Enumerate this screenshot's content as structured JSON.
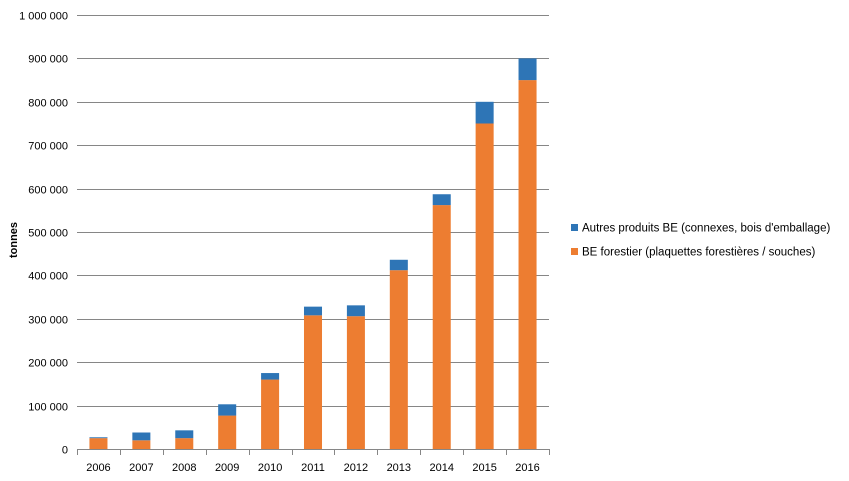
{
  "chart_data": {
    "type": "bar",
    "stacked": true,
    "title": "",
    "xlabel": "",
    "ylabel": "tonnes",
    "ylim": [
      0,
      1000000
    ],
    "ytick_step": 100000,
    "ytick_labels": [
      "0",
      "100 000",
      "200 000",
      "300 000",
      "400 000",
      "500 000",
      "600 000",
      "700 000",
      "800 000",
      "900 000",
      "1 000 000"
    ],
    "grid": true,
    "legend_position": "right",
    "categories": [
      "2006",
      "2007",
      "2008",
      "2009",
      "2010",
      "2011",
      "2012",
      "2013",
      "2014",
      "2015",
      "2016"
    ],
    "series": [
      {
        "name": "BE forestier (plaquettes forestières / souches)",
        "color": "#ed7d31",
        "values": [
          25000,
          20000,
          25000,
          77000,
          160000,
          308000,
          306000,
          412000,
          562000,
          750000,
          850000
        ]
      },
      {
        "name": "Autres produits BE (connexes, bois d'emballage)",
        "color": "#2e75b6",
        "values": [
          2000,
          18000,
          18000,
          26000,
          15000,
          20000,
          25000,
          24000,
          25000,
          50000,
          50000
        ]
      }
    ],
    "legend_order": [
      1,
      0
    ]
  }
}
